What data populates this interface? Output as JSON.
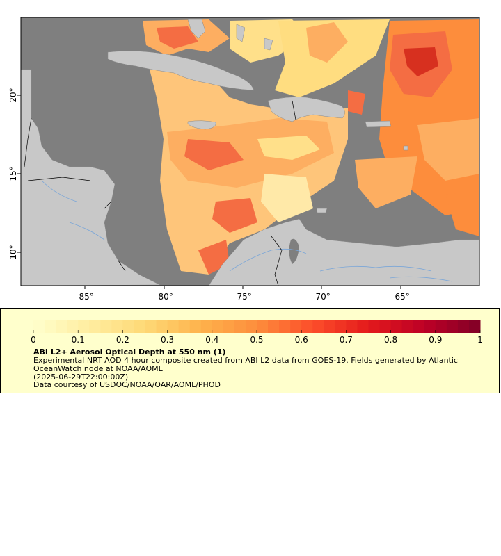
{
  "map": {
    "lon_ticks": [
      "-85°",
      "-80°",
      "-75°",
      "-70°",
      "-65°"
    ],
    "lat_ticks": [
      "20°",
      "15°",
      "10°"
    ],
    "lon_range": [
      -88.5,
      -59.5
    ],
    "lat_range": [
      8,
      25
    ],
    "colors": {
      "no_data": "#7f7f7f",
      "land": "#c8c8c8",
      "rivers": "#7aa6d8",
      "borders": "#000000"
    }
  },
  "legend": {
    "title": "ABI L2+ Aerosol Optical Depth at 550 nm (1)",
    "description": "Experimental NRT AOD 4 hour composite created from ABI L2 data from GOES-19. Fields generated by Atlantic OceanWatch node at NOAA/AOML",
    "timestamp": "(2025-06-29T22:00:00Z)",
    "credit": "Data courtesy of USDOC/NOAA/OAR/AOML/PHOD",
    "tick_labels": [
      "0",
      "0.1",
      "0.2",
      "0.3",
      "0.4",
      "0.5",
      "0.6",
      "0.7",
      "0.8",
      "0.9",
      "1"
    ],
    "range": [
      0,
      1
    ],
    "colormap": [
      "#ffffcc",
      "#ffeda0",
      "#fed976",
      "#feb24c",
      "#fd8d3c",
      "#fc4e2a",
      "#e31a1c",
      "#bd0026",
      "#800026"
    ]
  }
}
